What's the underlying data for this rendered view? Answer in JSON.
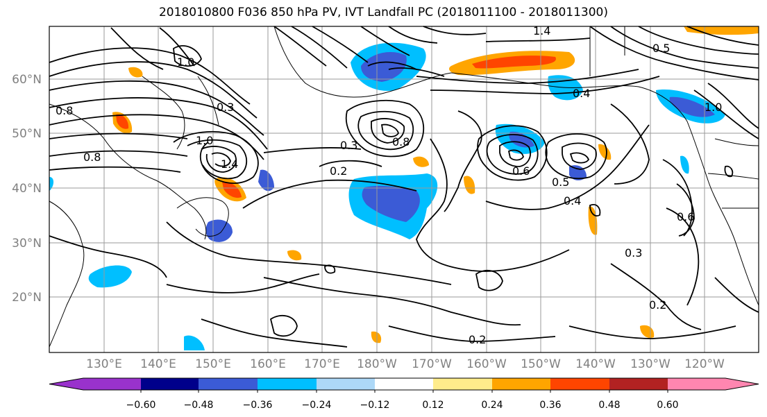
{
  "title": "2018010800 F036 850 hPa PV, IVT Landfall PC (2018011100 - 2018011300)",
  "map": {
    "lat_labels": [
      "60°N",
      "50°N",
      "40°N",
      "30°N",
      "20°N"
    ],
    "lon_labels": [
      "130°E",
      "140°E",
      "150°E",
      "160°E",
      "170°E",
      "180°W",
      "170°W",
      "160°W",
      "150°W",
      "140°W",
      "130°W",
      "120°W"
    ],
    "contour_labels": [
      "0.2",
      "0.3",
      "0.4",
      "0.5",
      "0.6",
      "0.8",
      "1.0",
      "1.4",
      "0.2",
      "0.3",
      "0.4",
      "0.5",
      "0.6",
      "0.8",
      "1.0",
      "0.2",
      "0.3",
      "0.8",
      "1.0",
      "1.4"
    ]
  },
  "colorbar": {
    "tick_labels": [
      "−0.60",
      "−0.48",
      "−0.36",
      "−0.24",
      "−0.12",
      "0.12",
      "0.24",
      "0.36",
      "0.48",
      "0.60"
    ],
    "colors": [
      "#9932cc",
      "#00008b",
      "#3b5bd6",
      "#00bfff",
      "#add8f7",
      "#ffffff",
      "#ffec8b",
      "#ffa500",
      "#ff4500",
      "#b22222",
      "#ff86b0"
    ]
  }
}
